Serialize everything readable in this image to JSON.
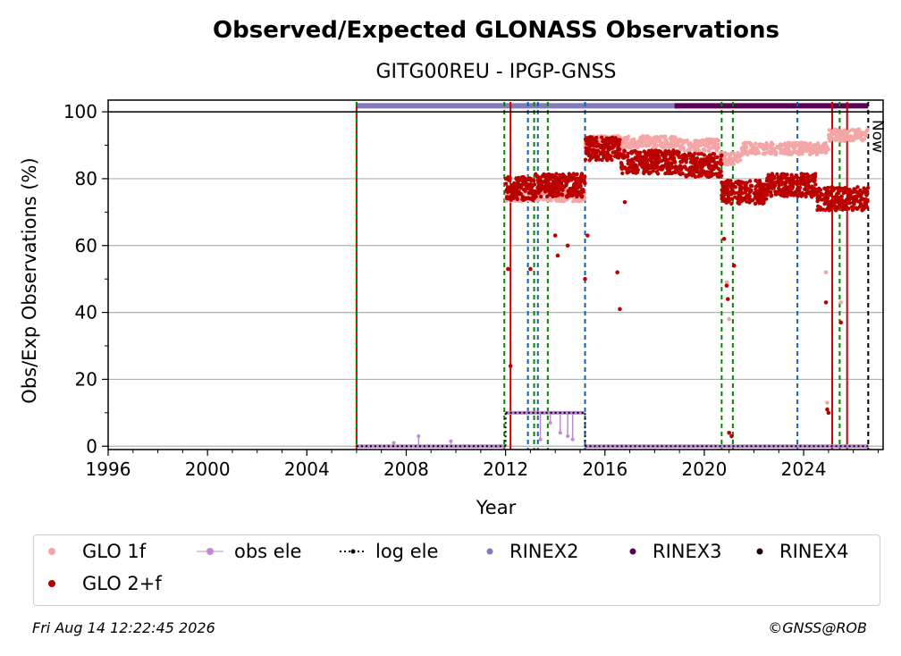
{
  "chart_data": {
    "type": "scatter",
    "title": "Observed/Expected GLONASS Observations",
    "subtitle": "GITG00REU - IPGP-GNSS",
    "xlabel": "Year",
    "ylabel": "Obs/Exp Observations (%)",
    "xlim": [
      1996,
      2027.2
    ],
    "ylim": [
      -1,
      103.5
    ],
    "x_ticks": [
      "1996",
      "2000",
      "2004",
      "2008",
      "2012",
      "2016",
      "2020",
      "2024"
    ],
    "y_ticks": [
      "0",
      "20",
      "40",
      "60",
      "80",
      "100"
    ],
    "grid": "y",
    "now_label": "Now",
    "now_x": 2026.6,
    "series": [
      {
        "name": "GLO 1f",
        "color": "#f4a6a6",
        "segments": [
          {
            "x": [
              2012.0,
              2015.2
            ],
            "y": 75
          },
          {
            "x": [
              2015.2,
              2019.0
            ],
            "y": 91
          },
          {
            "x": [
              2019.0,
              2020.6
            ],
            "y": 90
          },
          {
            "x": [
              2020.6,
              2021.5
            ],
            "y": 86
          },
          {
            "x": [
              2021.5,
              2025.0
            ],
            "y": 89
          },
          {
            "x": [
              2025.0,
              2026.6
            ],
            "y": 93
          }
        ]
      },
      {
        "name": "GLO 2+f",
        "color": "#bb0000",
        "segments": [
          {
            "x": [
              2012.0,
              2013.2
            ],
            "y": 77
          },
          {
            "x": [
              2013.2,
              2015.2
            ],
            "y": 78
          },
          {
            "x": [
              2015.2,
              2016.6
            ],
            "y": 89
          },
          {
            "x": [
              2016.6,
              2019.0
            ],
            "y": 85
          },
          {
            "x": [
              2019.0,
              2020.7
            ],
            "y": 84
          },
          {
            "x": [
              2020.7,
              2022.5
            ],
            "y": 76
          },
          {
            "x": [
              2022.5,
              2024.5
            ],
            "y": 78
          },
          {
            "x": [
              2024.5,
              2026.6
            ],
            "y": 74
          }
        ]
      },
      {
        "name": "obs ele",
        "color": "#c08ad0",
        "segments": [
          {
            "x": [
              2006.0,
              2012.0
            ],
            "y": 0
          },
          {
            "x": [
              2012.0,
              2015.2
            ],
            "y": 10
          },
          {
            "x": [
              2015.2,
              2026.6
            ],
            "y": 0
          }
        ]
      },
      {
        "name": "log ele",
        "color": "#000000",
        "segments": [
          {
            "x": [
              2006.0,
              2012.0
            ],
            "y": 0
          },
          {
            "x": [
              2012.0,
              2015.2
            ],
            "y": 10
          },
          {
            "x": [
              2015.2,
              2026.6
            ],
            "y": 0
          }
        ]
      },
      {
        "name": "RINEX2",
        "color": "#8479bb",
        "segments": [
          {
            "x": [
              2006.0,
              2018.8
            ],
            "y": 101.8
          }
        ]
      },
      {
        "name": "RINEX3",
        "color": "#5a0057",
        "segments": [
          {
            "x": [
              2018.8,
              2026.6
            ],
            "y": 101.8
          }
        ]
      },
      {
        "name": "RINEX4",
        "color": "#1a0010",
        "segments": []
      }
    ],
    "outliers_2plus": [
      [
        2012.1,
        53
      ],
      [
        2012.2,
        24
      ],
      [
        2013.0,
        53
      ],
      [
        2014.0,
        63
      ],
      [
        2014.1,
        57
      ],
      [
        2014.5,
        60
      ],
      [
        2015.2,
        50
      ],
      [
        2015.3,
        63
      ],
      [
        2016.5,
        52
      ],
      [
        2016.6,
        41
      ],
      [
        2016.8,
        73
      ],
      [
        2020.8,
        62
      ],
      [
        2020.9,
        48
      ],
      [
        2020.95,
        44
      ],
      [
        2021.0,
        4
      ],
      [
        2021.1,
        3
      ],
      [
        2021.2,
        54
      ],
      [
        2024.9,
        43
      ],
      [
        2024.95,
        11
      ],
      [
        2025.0,
        10
      ],
      [
        2025.5,
        37
      ]
    ],
    "outliers_1f": [
      [
        2020.9,
        49
      ],
      [
        2021.0,
        38
      ],
      [
        2024.9,
        52
      ],
      [
        2024.95,
        13
      ],
      [
        2025.5,
        43
      ]
    ],
    "obs_ele_spikes": [
      [
        2007.5,
        1
      ],
      [
        2008.5,
        3
      ],
      [
        2009.8,
        1.5
      ],
      [
        2013.4,
        2
      ],
      [
        2013.8,
        7
      ],
      [
        2014.2,
        4
      ],
      [
        2014.5,
        3
      ],
      [
        2014.7,
        2
      ]
    ],
    "vlines": [
      {
        "x": 2006.0,
        "color": "#cc0000",
        "style": "solid"
      },
      {
        "x": 2006.0,
        "color": "#008800",
        "style": "dashed"
      },
      {
        "x": 2011.95,
        "color": "#008800",
        "style": "dashed"
      },
      {
        "x": 2012.2,
        "color": "#cc0000",
        "style": "solid"
      },
      {
        "x": 2012.9,
        "color": "#1060b0",
        "style": "dashed"
      },
      {
        "x": 2013.15,
        "color": "#008800",
        "style": "dashed"
      },
      {
        "x": 2013.3,
        "color": "#1060b0",
        "style": "dashed"
      },
      {
        "x": 2013.7,
        "color": "#008800",
        "style": "dashed"
      },
      {
        "x": 2015.2,
        "color": "#1060b0",
        "style": "dashed"
      },
      {
        "x": 2020.7,
        "color": "#008800",
        "style": "dashed"
      },
      {
        "x": 2021.15,
        "color": "#008800",
        "style": "dashed"
      },
      {
        "x": 2023.75,
        "color": "#1060b0",
        "style": "dashed"
      },
      {
        "x": 2025.15,
        "color": "#cc0000",
        "style": "solid"
      },
      {
        "x": 2025.45,
        "color": "#008800",
        "style": "dashed"
      },
      {
        "x": 2025.75,
        "color": "#cc0000",
        "style": "solid"
      },
      {
        "x": 2026.6,
        "color": "#000000",
        "style": "dashed"
      }
    ],
    "legend": [
      "GLO 1f",
      "obs ele",
      "log ele",
      "RINEX2",
      "RINEX3",
      "RINEX4",
      "GLO 2+f"
    ],
    "legend_placement": "bottom"
  },
  "footer": {
    "timestamp": "Fri Aug 14 12:22:45 2026",
    "credit": "©GNSS@ROB"
  }
}
